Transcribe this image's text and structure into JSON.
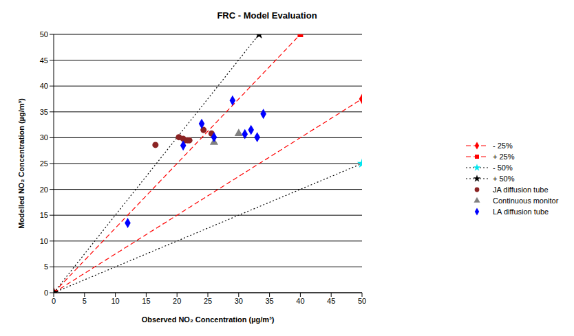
{
  "chart_data": {
    "type": "scatter",
    "title": "FRC - Model Evaluation",
    "x_label": "Observed NO₂ Concentration (µg/m³)",
    "y_label": "Modelled NO₂ Concentration (µg/m³)",
    "xlim": [
      0,
      50
    ],
    "ylim": [
      0,
      50
    ],
    "xticks": [
      0,
      5,
      10,
      15,
      20,
      25,
      30,
      35,
      40,
      45,
      50
    ],
    "yticks": [
      0,
      5,
      10,
      15,
      20,
      25,
      30,
      35,
      40,
      45,
      50
    ],
    "grid": true,
    "legend": "right",
    "series": [
      {
        "name": "- 25%",
        "type": "line",
        "color": "#ff0000",
        "line_style": "dashed",
        "marker": "diamond",
        "x": [
          0,
          50
        ],
        "values": [
          0,
          37.5
        ]
      },
      {
        "name": "+ 25%",
        "type": "line",
        "color": "#ff0000",
        "line_style": "dashed",
        "marker": "square",
        "x": [
          0,
          40
        ],
        "values": [
          0,
          50
        ]
      },
      {
        "name": "- 50%",
        "type": "line",
        "color": "#000000",
        "colors": [
          "#000000",
          "#00e5ee"
        ],
        "line_style": "dotted",
        "marker": "star",
        "x": [
          0,
          50
        ],
        "values": [
          0,
          25
        ]
      },
      {
        "name": "+ 50%",
        "type": "line",
        "color": "#000000",
        "line_style": "dotted",
        "marker": "star",
        "x": [
          0,
          33.3
        ],
        "values": [
          0,
          50
        ]
      },
      {
        "name": "JA diffusion tube",
        "type": "scatter",
        "color": "#8b2323",
        "marker": "circle",
        "x": [
          16.5,
          20.3,
          21,
          21.3,
          21.7,
          22,
          24.3,
          25.6
        ],
        "values": [
          28.6,
          30.1,
          29.8,
          29.5,
          29.5,
          29.5,
          31.5,
          30.8
        ]
      },
      {
        "name": "Continuous monitor",
        "type": "scatter",
        "color": "#808080",
        "marker": "triangle",
        "x": [
          26,
          30
        ],
        "values": [
          29.1,
          30.8
        ]
      },
      {
        "name": "LA diffusion tube",
        "type": "scatter",
        "color": "#0000ff",
        "marker": "diamond",
        "x": [
          12,
          21,
          24,
          26,
          29,
          31,
          32,
          33,
          34
        ],
        "values": [
          13.5,
          28.5,
          32.7,
          30.1,
          37.2,
          30.7,
          31.5,
          30.1,
          34.6
        ]
      }
    ]
  }
}
